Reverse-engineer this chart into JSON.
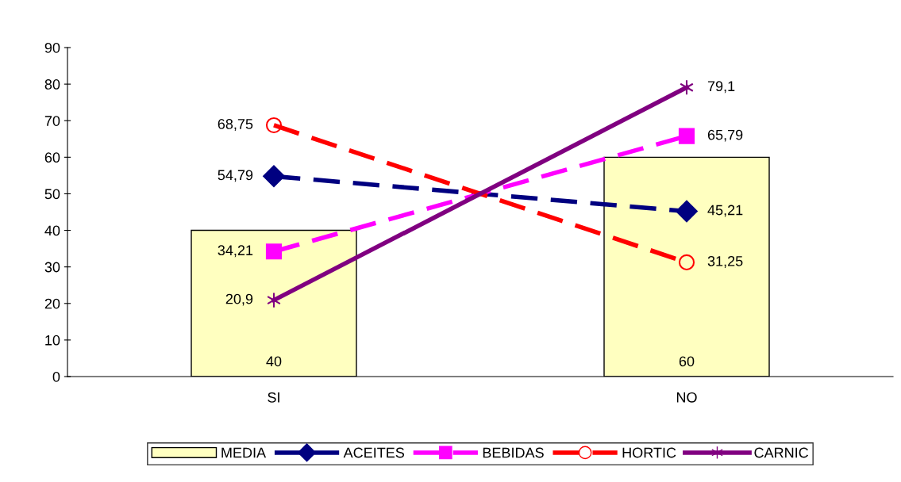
{
  "chart_data": {
    "type": "bar",
    "categories": [
      "SI",
      "NO"
    ],
    "ylim": [
      0,
      90
    ],
    "yticks": [
      0,
      10,
      20,
      30,
      40,
      50,
      60,
      70,
      80,
      90
    ],
    "grid": false,
    "legend": "bottom",
    "series": [
      {
        "name": "MEDIA",
        "color": "#ffffc0",
        "values": [
          40,
          60
        ],
        "value_labels": [
          "40",
          "60"
        ]
      },
      {
        "name": "ACEITES",
        "type": "line",
        "color": "#000080",
        "values": [
          54.79,
          45.21
        ],
        "marker": "diamond",
        "line_style": "dashed",
        "value_labels": [
          "54,79",
          "45,21"
        ]
      },
      {
        "name": "BEBIDAS",
        "type": "line",
        "color": "#ff00ff",
        "values": [
          34.21,
          65.79
        ],
        "marker": "square",
        "line_style": "dashed",
        "value_labels": [
          "34,21",
          "65,79"
        ]
      },
      {
        "name": "HORTIC",
        "type": "line",
        "color": "#ff0000",
        "values": [
          68.75,
          31.25
        ],
        "marker": "circle",
        "line_style": "dashed",
        "value_labels": [
          "68,75",
          "31,25"
        ]
      },
      {
        "name": "CARNIC",
        "type": "line",
        "color": "#800080",
        "values": [
          20.9,
          79.1
        ],
        "marker": "cross",
        "line_style": "solid",
        "value_labels": [
          "20,9",
          "79,1"
        ]
      }
    ]
  }
}
